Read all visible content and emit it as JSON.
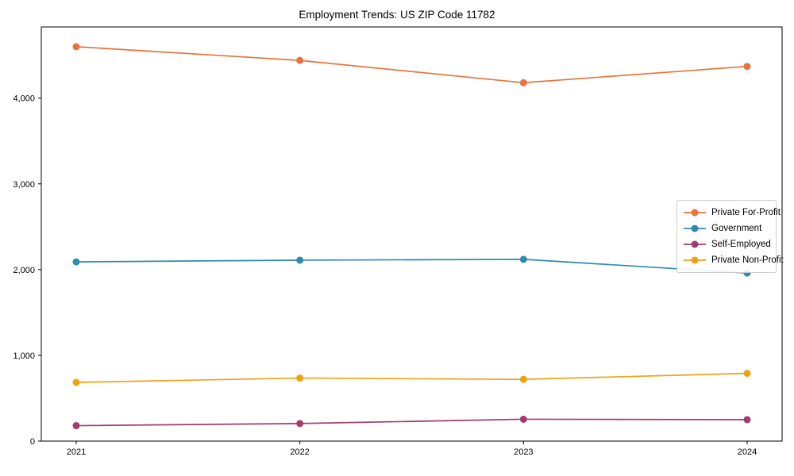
{
  "chart_data": {
    "type": "line",
    "title": "Employment Trends: US ZIP Code 11782",
    "x": [
      "2021",
      "2022",
      "2023",
      "2024"
    ],
    "series": [
      {
        "name": "Private For-Profit",
        "color": "#e8743b",
        "values": [
          4600,
          4440,
          4180,
          4370
        ]
      },
      {
        "name": "Government",
        "color": "#2e8bab",
        "values": [
          2090,
          2110,
          2120,
          1960
        ]
      },
      {
        "name": "Self-Employed",
        "color": "#a23b72",
        "values": [
          180,
          205,
          255,
          250
        ]
      },
      {
        "name": "Private Non-Profit",
        "color": "#f0a113",
        "values": [
          685,
          735,
          720,
          790
        ]
      }
    ],
    "xlabel": "",
    "ylabel": "",
    "ylim": [
      0,
      4830
    ],
    "yticks": [
      0,
      1000,
      2000,
      3000,
      4000
    ],
    "ytick_labels": [
      "0",
      "1,000",
      "2,000",
      "3,000",
      "4,000"
    ],
    "grid": false,
    "legend_position": "center-right",
    "axis_color": "#000000"
  }
}
